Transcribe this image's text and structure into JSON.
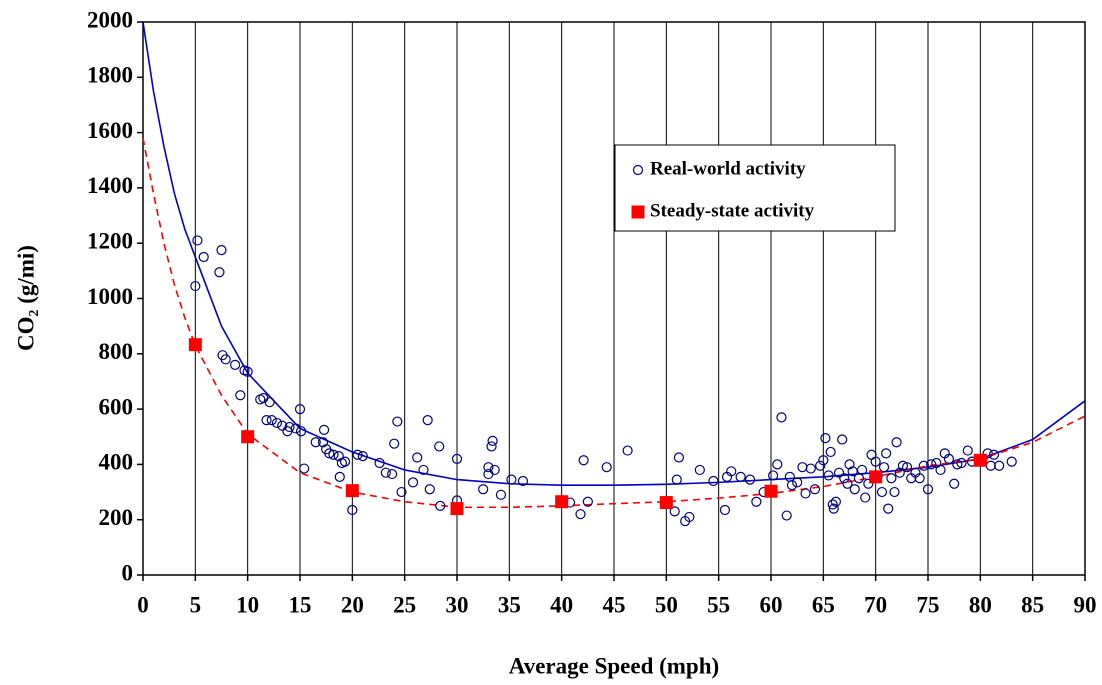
{
  "chart_data": {
    "type": "scatter",
    "xlabel": "Average Speed (mph)",
    "ylabel": "CO₂ (g/mi)",
    "xlim": [
      0,
      90
    ],
    "ylim": [
      0,
      2000
    ],
    "xticks": [
      0,
      5,
      10,
      15,
      20,
      25,
      30,
      35,
      40,
      45,
      50,
      55,
      60,
      65,
      70,
      75,
      80,
      85,
      90
    ],
    "yticks": [
      0,
      200,
      400,
      600,
      800,
      1000,
      1200,
      1400,
      1600,
      1800,
      2000
    ],
    "series": [
      {
        "name": "Real-world activity",
        "color": "#000080",
        "marker": "circle",
        "x": [
          5.2,
          5,
          5.8,
          7.3,
          7.5,
          7.6,
          7.9,
          8.8,
          9.3,
          9.7,
          10,
          11.2,
          11.5,
          11.8,
          12.1,
          12.3,
          12.8,
          13.3,
          13.8,
          14,
          14.6,
          15,
          15.1,
          15.4,
          16.5,
          17.2,
          17.3,
          17.5,
          17.8,
          18.2,
          18.7,
          18.8,
          19,
          19.3,
          20,
          20.5,
          21,
          22.6,
          23.2,
          23.8,
          24,
          24.3,
          24.7,
          25.8,
          26.2,
          26.8,
          27.2,
          27.4,
          28.3,
          28.4,
          30,
          30,
          32.5,
          33,
          33,
          33.3,
          33.4,
          33.6,
          34.2,
          35.2,
          36.3,
          40,
          40.8,
          41.8,
          42.1,
          42.5,
          44.3,
          46.3,
          50.8,
          51,
          51.2,
          51.8,
          52.2,
          53.2,
          54.5,
          55.6,
          55.8,
          56.2,
          57.1,
          58,
          58.6,
          59.3,
          60.2,
          60.6,
          61,
          61.5,
          61.8,
          62,
          62.5,
          63,
          63.3,
          63.8,
          64.2,
          64.7,
          65,
          65.2,
          65.5,
          65.7,
          65.9,
          66,
          66.2,
          66.5,
          66.8,
          67,
          67.3,
          67.5,
          67.8,
          68,
          68.4,
          68.7,
          69,
          69.3,
          69.6,
          70,
          70.2,
          70.6,
          70.8,
          71,
          71.2,
          71.5,
          71.8,
          72,
          72.3,
          72.6,
          73,
          73.4,
          73.8,
          74.2,
          74.6,
          75,
          75.3,
          75.8,
          76.2,
          76.6,
          77,
          77.5,
          77.8,
          78.2,
          78.8,
          79.2,
          80.2,
          80.7,
          81,
          81.3,
          81.8,
          83
        ],
        "values": [
          1210,
          1045,
          1150,
          1095,
          1175,
          795,
          780,
          760,
          650,
          740,
          735,
          635,
          640,
          560,
          625,
          560,
          550,
          540,
          520,
          535,
          530,
          600,
          520,
          385,
          480,
          480,
          525,
          455,
          440,
          435,
          430,
          355,
          405,
          410,
          235,
          435,
          430,
          405,
          370,
          365,
          475,
          555,
          300,
          335,
          425,
          380,
          560,
          310,
          465,
          250,
          420,
          270,
          310,
          390,
          365,
          465,
          485,
          380,
          290,
          345,
          340,
          265,
          262,
          220,
          415,
          265,
          390,
          450,
          230,
          345,
          425,
          195,
          210,
          380,
          340,
          235,
          355,
          375,
          355,
          345,
          265,
          300,
          360,
          400,
          570,
          215,
          355,
          325,
          335,
          390,
          295,
          385,
          310,
          395,
          415,
          495,
          360,
          445,
          255,
          240,
          265,
          370,
          490,
          350,
          330,
          400,
          375,
          310,
          350,
          380,
          280,
          330,
          435,
          410,
          360,
          300,
          390,
          440,
          240,
          350,
          300,
          480,
          370,
          395,
          390,
          350,
          370,
          350,
          395,
          310,
          400,
          405,
          380,
          440,
          420,
          330,
          400,
          405,
          450,
          410,
          420,
          440,
          395,
          435,
          395,
          410
        ]
      },
      {
        "name": "Steady-state activity",
        "color": "#ff0000",
        "marker": "square",
        "x": [
          5,
          10,
          20,
          30,
          40,
          50,
          60,
          70,
          80
        ],
        "values": [
          833,
          500,
          305,
          240,
          265,
          262,
          303,
          355,
          415
        ]
      }
    ],
    "curves": [
      {
        "color": "#0000cc",
        "style": "solid",
        "x": [
          0,
          1,
          2,
          3,
          4,
          5,
          7.5,
          10,
          15,
          20,
          25,
          30,
          35,
          40,
          45,
          50,
          55,
          60,
          65,
          70,
          75,
          80,
          85,
          90
        ],
        "values": [
          2000,
          1750,
          1550,
          1380,
          1250,
          1150,
          900,
          730,
          530,
          445,
          380,
          345,
          330,
          325,
          325,
          328,
          335,
          345,
          355,
          370,
          390,
          420,
          490,
          630
        ]
      },
      {
        "color": "#ff0000",
        "style": "dashed",
        "x": [
          0,
          1,
          2,
          3,
          4,
          5,
          7.5,
          10,
          15,
          20,
          25,
          30,
          35,
          40,
          45,
          50,
          55,
          60,
          65,
          70,
          75,
          80,
          85,
          90
        ],
        "values": [
          1580,
          1380,
          1200,
          1050,
          930,
          830,
          650,
          510,
          370,
          300,
          265,
          245,
          245,
          250,
          258,
          265,
          278,
          295,
          320,
          355,
          395,
          420,
          480,
          575
        ]
      }
    ]
  }
}
